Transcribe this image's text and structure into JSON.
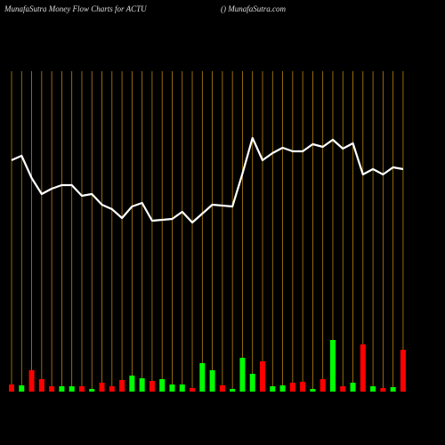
{
  "chart_data": {
    "type": "money-flow",
    "title": "MunafaSutra  Money Flow  Charts for ACTU",
    "subtitle": "() MunafaSutra.com",
    "ylim": [
      0,
      360
    ],
    "grid_color": "#b8860b",
    "line": {
      "color": "#ffffff",
      "values": [
        260,
        265,
        240,
        222,
        228,
        232,
        232,
        220,
        222,
        210,
        205,
        195,
        208,
        212,
        192,
        193,
        194,
        202,
        190,
        200,
        210,
        209,
        208,
        245,
        285,
        260,
        268,
        274,
        270,
        270,
        278,
        275,
        283,
        273,
        279,
        244,
        250,
        244,
        252,
        250
      ]
    },
    "bars": {
      "values": [
        8,
        7,
        24,
        14,
        6,
        6,
        6,
        6,
        3,
        10,
        6,
        13,
        18,
        15,
        12,
        14,
        8,
        8,
        4,
        32,
        24,
        7,
        3,
        38,
        20,
        34,
        6,
        7,
        10,
        11,
        3,
        14,
        58,
        6,
        10,
        53,
        6,
        4,
        5,
        47
      ],
      "colors": [
        "#ff0000",
        "#00ff00",
        "#ff0000",
        "#ff0000",
        "#ff0000",
        "#00ff00",
        "#00ff00",
        "#ff0000",
        "#00ff00",
        "#ff0000",
        "#ff0000",
        "#ff0000",
        "#00ff00",
        "#00ff00",
        "#ff0000",
        "#00ff00",
        "#00ff00",
        "#00ff00",
        "#ff0000",
        "#00ff00",
        "#00ff00",
        "#ff0000",
        "#00ff00",
        "#00ff00",
        "#00ff00",
        "#ff0000",
        "#00ff00",
        "#00ff00",
        "#ff0000",
        "#ff0000",
        "#00ff00",
        "#ff0000",
        "#00ff00",
        "#ff0000",
        "#00ff00",
        "#ff0000",
        "#00ff00",
        "#ff0000",
        "#00ff00",
        "#ff0000"
      ]
    }
  }
}
